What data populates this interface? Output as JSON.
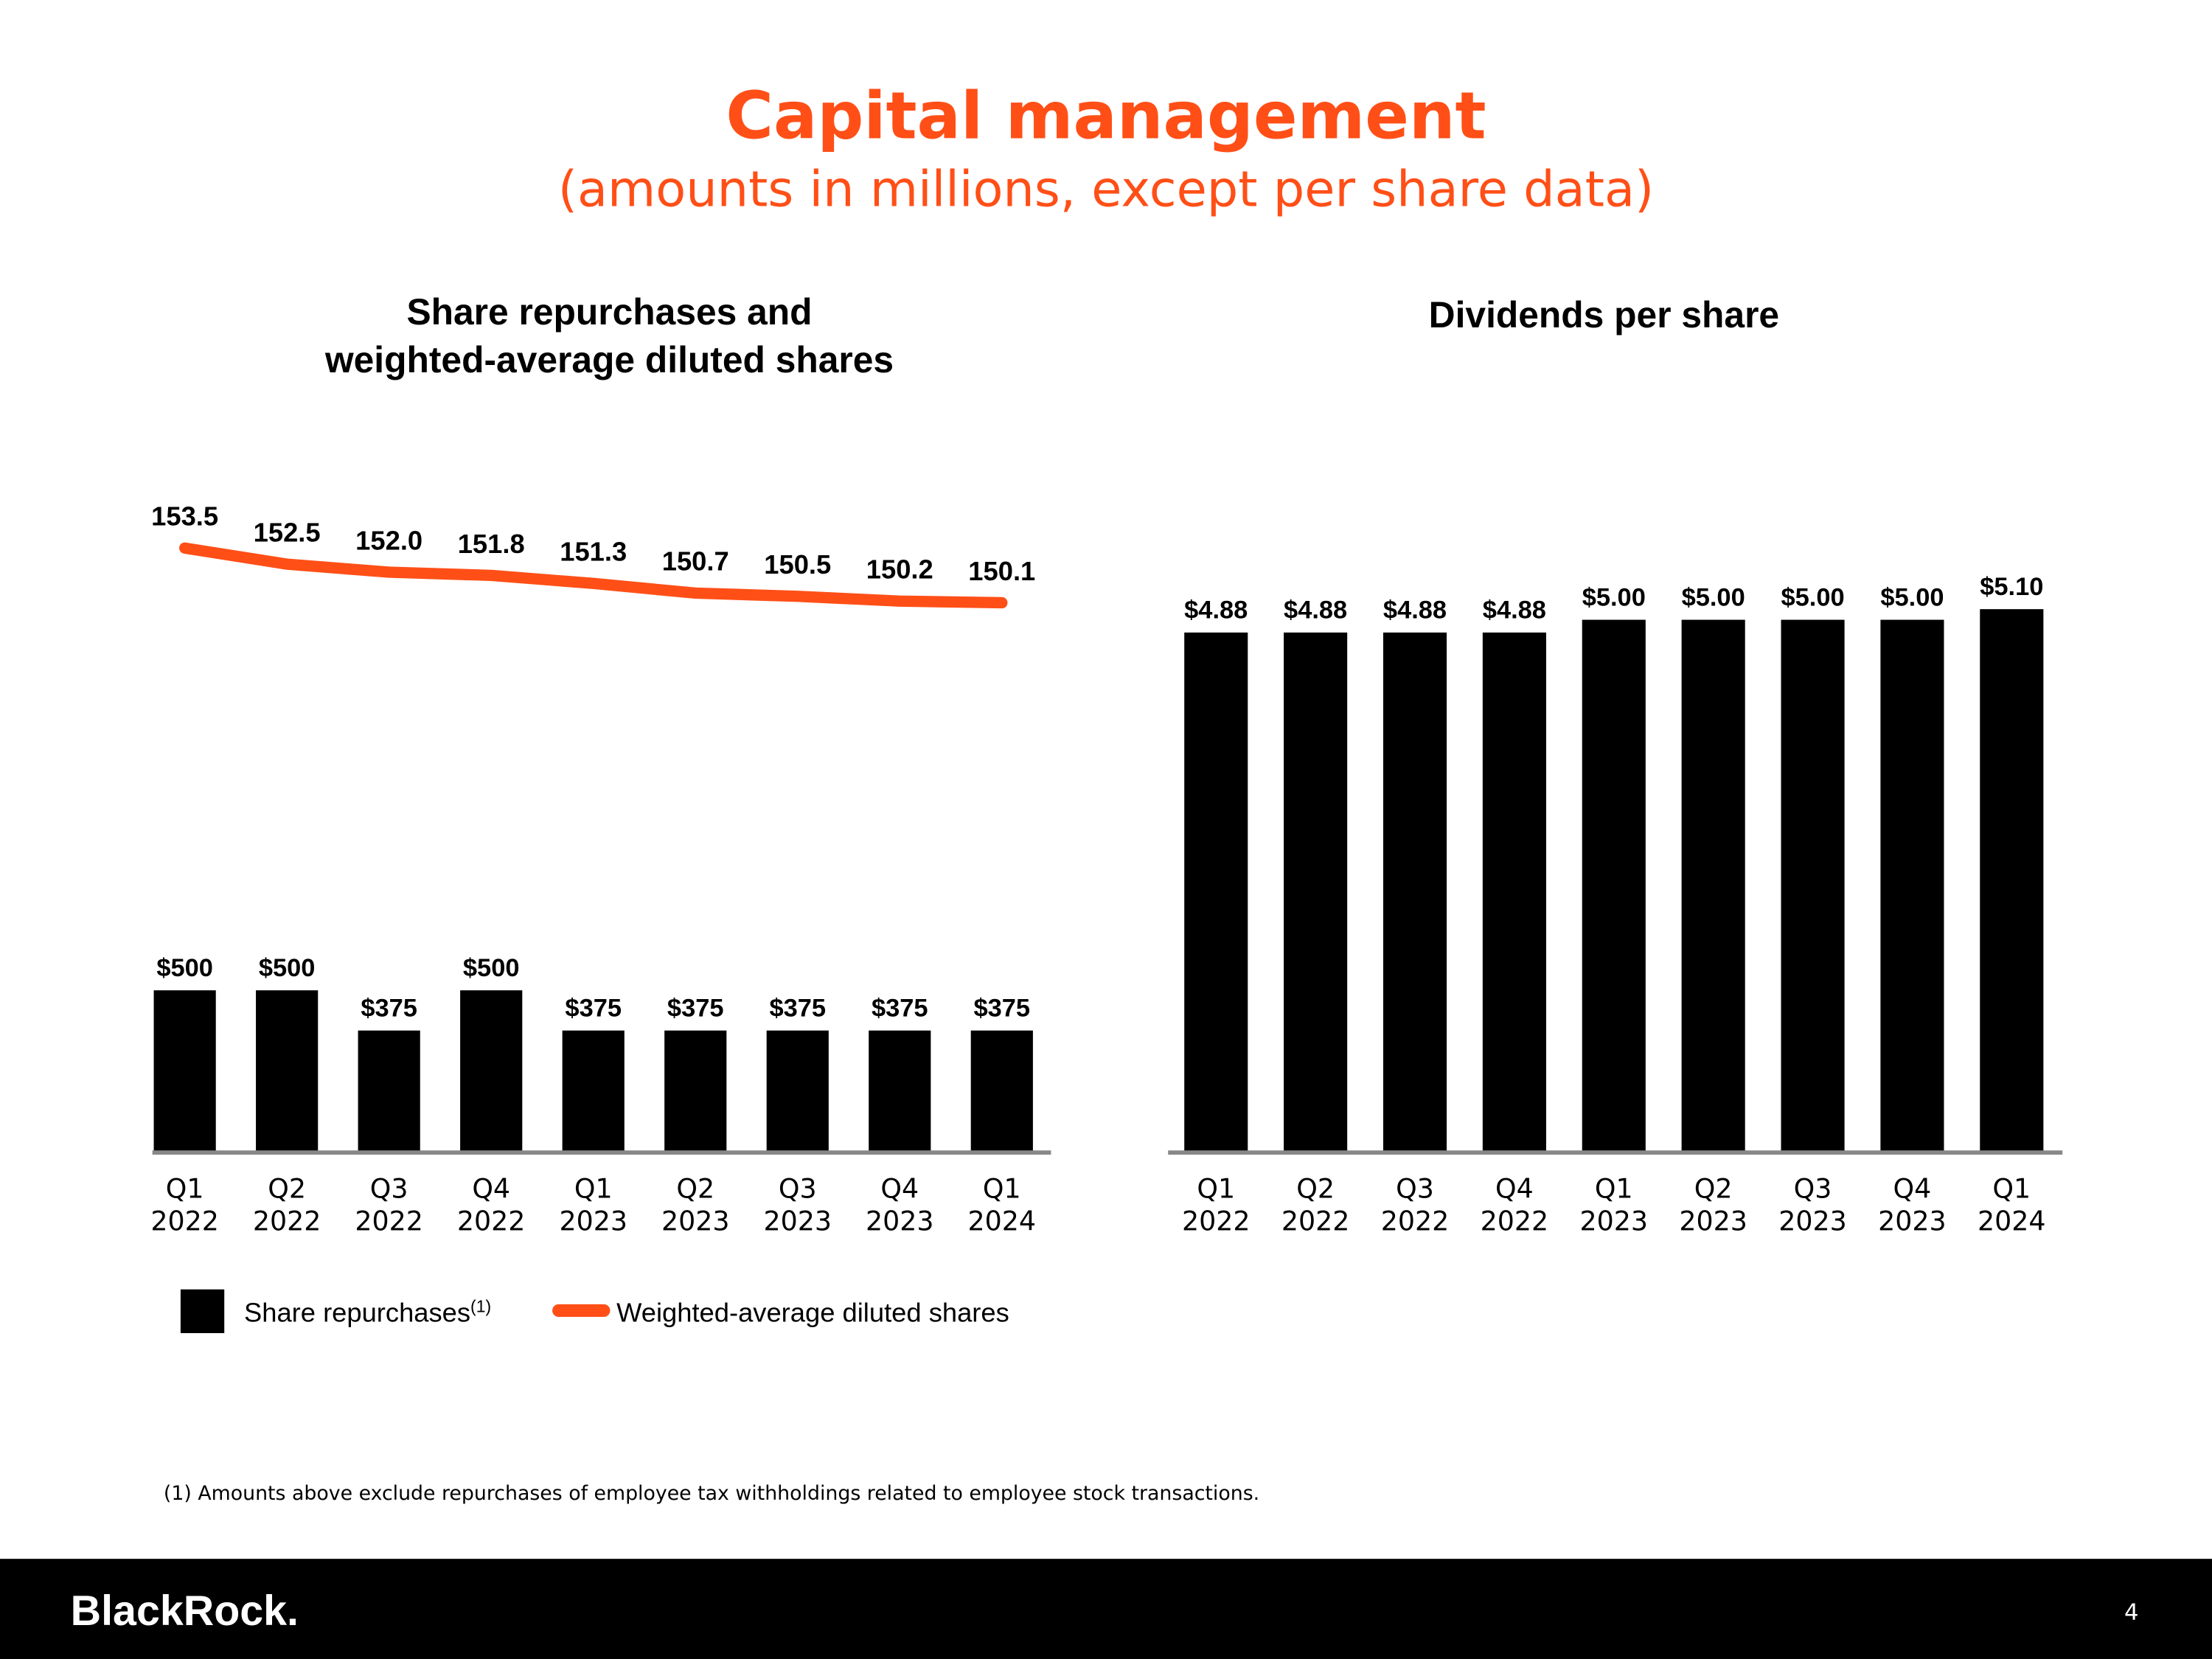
{
  "title": "Capital management",
  "subtitle": "(amounts in millions, except per share data)",
  "footnote": "(1) Amounts above exclude repurchases of employee tax withholdings related to employee stock transactions.",
  "footer": {
    "logo": "BlackRock.",
    "page": "4"
  },
  "chart_data": [
    {
      "type": "bar",
      "title": [
        "Share repurchases and",
        "weighted-average diluted shares"
      ],
      "categories": [
        [
          "Q1",
          "2022"
        ],
        [
          "Q2",
          "2022"
        ],
        [
          "Q3",
          "2022"
        ],
        [
          "Q4",
          "2022"
        ],
        [
          "Q1",
          "2023"
        ],
        [
          "Q2",
          "2023"
        ],
        [
          "Q3",
          "2023"
        ],
        [
          "Q4",
          "2023"
        ],
        [
          "Q1",
          "2024"
        ]
      ],
      "ylim": [
        0,
        2000
      ],
      "y2lim": [
        116,
        156
      ],
      "series": [
        {
          "name": "Share repurchases",
          "marker": "(1)",
          "type": "bar",
          "color": "#000000",
          "values": [
            500,
            500,
            375,
            500,
            375,
            375,
            375,
            375,
            375
          ],
          "value_labels": [
            "$500",
            "$500",
            "$375",
            "$500",
            "$375",
            "$375",
            "$375",
            "$375",
            "$375"
          ]
        },
        {
          "name": "Weighted-average diluted shares",
          "type": "line",
          "axis": "y2",
          "color": "#ff4f17",
          "values": [
            153.5,
            152.5,
            152.0,
            151.8,
            151.3,
            150.7,
            150.5,
            150.2,
            150.1
          ],
          "value_labels": [
            "153.5",
            "152.5",
            "152.0",
            "151.8",
            "151.3",
            "150.7",
            "150.5",
            "150.2",
            "150.1"
          ]
        }
      ]
    },
    {
      "type": "bar",
      "title": [
        "Dividends per share"
      ],
      "categories": [
        [
          "Q1",
          "2022"
        ],
        [
          "Q2",
          "2022"
        ],
        [
          "Q3",
          "2022"
        ],
        [
          "Q4",
          "2022"
        ],
        [
          "Q1",
          "2023"
        ],
        [
          "Q2",
          "2023"
        ],
        [
          "Q3",
          "2023"
        ],
        [
          "Q4",
          "2023"
        ],
        [
          "Q1",
          "2024"
        ]
      ],
      "ylim": [
        0,
        6
      ],
      "color": "#000000",
      "values": [
        4.88,
        4.88,
        4.88,
        4.88,
        5.0,
        5.0,
        5.0,
        5.0,
        5.1
      ],
      "value_labels": [
        "$4.88",
        "$4.88",
        "$4.88",
        "$4.88",
        "$5.00",
        "$5.00",
        "$5.00",
        "$5.00",
        "$5.10"
      ]
    }
  ]
}
